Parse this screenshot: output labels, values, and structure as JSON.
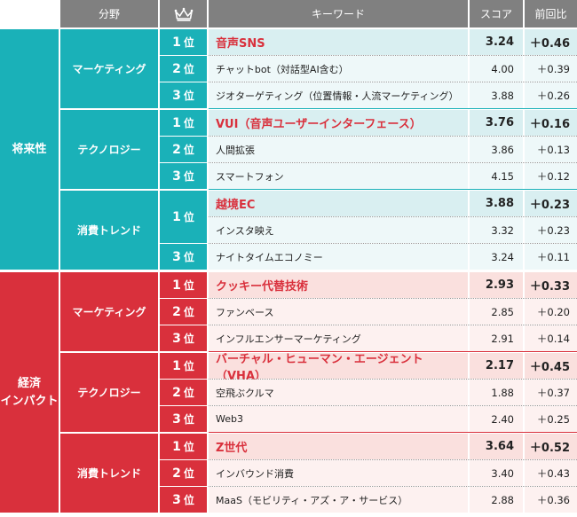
{
  "header": {
    "field": "分野",
    "rank_icon": "crown-icon",
    "keyword": "キーワード",
    "score": "スコア",
    "diff": "前回比"
  },
  "colors": {
    "teal": "#1ab1b8",
    "red": "#d9303c",
    "header": "#808080"
  },
  "groups": [
    {
      "label": "将来性",
      "fields": [
        {
          "name": "マーケティング",
          "rows": [
            {
              "rank": "1",
              "unit": "位",
              "keyword": "音声SNS",
              "score": "3.24",
              "diff": "＋0.46"
            },
            {
              "rank": "2",
              "unit": "位",
              "keyword": "チャットbot（対話型AI含む）",
              "score": "4.00",
              "diff": "＋0.39"
            },
            {
              "rank": "3",
              "unit": "位",
              "keyword": "ジオターゲティング（位置情報・人流マーケティング）",
              "score": "3.88",
              "diff": "＋0.26"
            }
          ]
        },
        {
          "name": "テクノロジー",
          "rows": [
            {
              "rank": "1",
              "unit": "位",
              "keyword": "VUI（音声ユーザーインターフェース）",
              "score": "3.76",
              "diff": "＋0.16"
            },
            {
              "rank": "2",
              "unit": "位",
              "keyword": "人間拡張",
              "score": "3.86",
              "diff": "＋0.13"
            },
            {
              "rank": "3",
              "unit": "位",
              "keyword": "スマートフォン",
              "score": "4.15",
              "diff": "＋0.12"
            }
          ]
        },
        {
          "name": "消費トレンド",
          "rows": [
            {
              "rank": "1",
              "unit": "位",
              "keyword": "越境EC",
              "score": "3.88",
              "diff": "＋0.23"
            },
            {
              "rank": "",
              "unit": "",
              "keyword": "インスタ映え",
              "score": "3.32",
              "diff": "＋0.23"
            },
            {
              "rank": "3",
              "unit": "位",
              "keyword": "ナイトタイムエコノミー",
              "score": "3.24",
              "diff": "＋0.11"
            }
          ]
        }
      ]
    },
    {
      "label": "経済\nインパクト",
      "fields": [
        {
          "name": "マーケティング",
          "rows": [
            {
              "rank": "1",
              "unit": "位",
              "keyword": "クッキー代替技術",
              "score": "2.93",
              "diff": "＋0.33"
            },
            {
              "rank": "2",
              "unit": "位",
              "keyword": "ファンベース",
              "score": "2.85",
              "diff": "＋0.20"
            },
            {
              "rank": "3",
              "unit": "位",
              "keyword": "インフルエンサーマーケティング",
              "score": "2.91",
              "diff": "＋0.14"
            }
          ]
        },
        {
          "name": "テクノロジー",
          "rows": [
            {
              "rank": "1",
              "unit": "位",
              "keyword": "バーチャル・ヒューマン・エージェント（VHA）",
              "score": "2.17",
              "diff": "＋0.45"
            },
            {
              "rank": "2",
              "unit": "位",
              "keyword": "空飛ぶクルマ",
              "score": "1.88",
              "diff": "＋0.37"
            },
            {
              "rank": "3",
              "unit": "位",
              "keyword": "Web3",
              "score": "2.40",
              "diff": "＋0.25"
            }
          ]
        },
        {
          "name": "消費トレンド",
          "rows": [
            {
              "rank": "1",
              "unit": "位",
              "keyword": "Z世代",
              "score": "3.64",
              "diff": "＋0.52"
            },
            {
              "rank": "2",
              "unit": "位",
              "keyword": "インバウンド消費",
              "score": "3.40",
              "diff": "＋0.43"
            },
            {
              "rank": "3",
              "unit": "位",
              "keyword": "MaaS（モビリティ・アズ・ア・サービス）",
              "score": "2.88",
              "diff": "＋0.36"
            }
          ]
        }
      ]
    }
  ]
}
